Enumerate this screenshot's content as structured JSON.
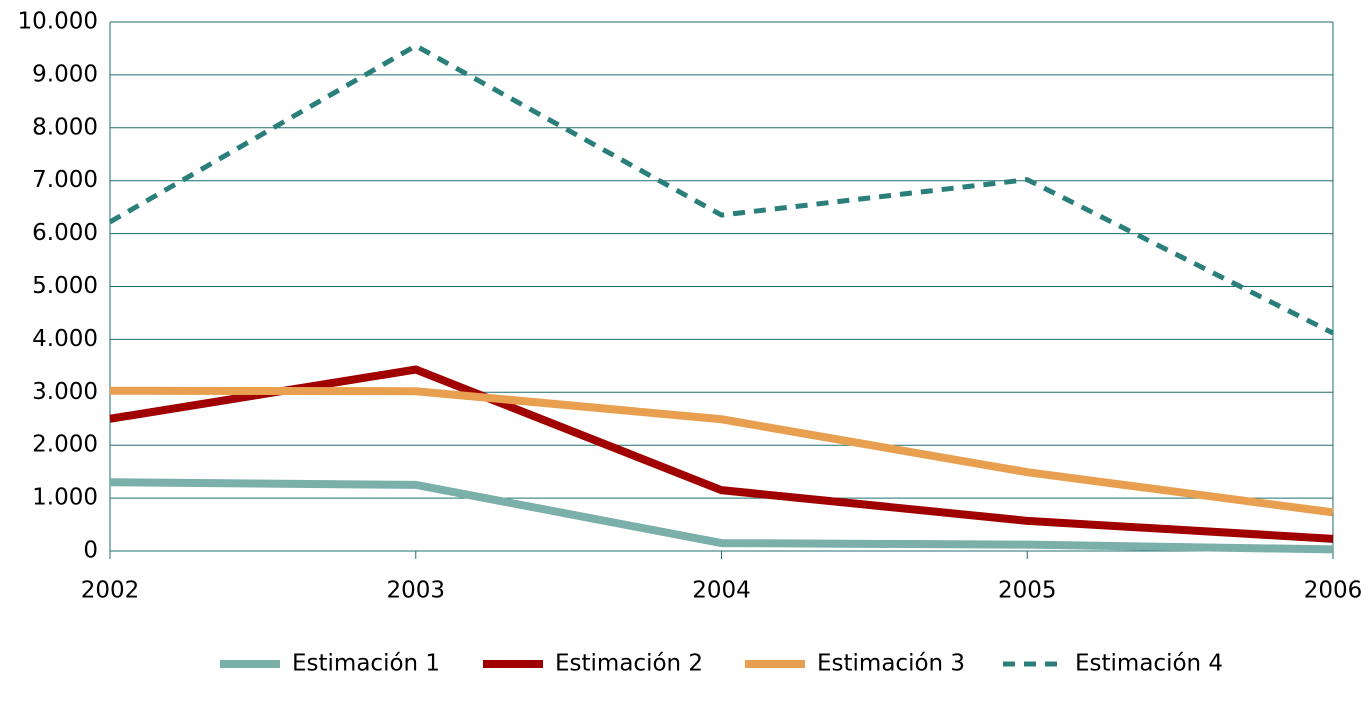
{
  "chart_data": {
    "type": "line",
    "x": [
      2002,
      2003,
      2004,
      2005,
      2006
    ],
    "xlim": [
      2002,
      2006
    ],
    "xticks": [
      2002,
      2003,
      2004,
      2005,
      2006
    ],
    "ylim": [
      0,
      10000
    ],
    "yticks": [
      0,
      {
        "value": 1000,
        "label": "1.000"
      },
      {
        "value": 2000,
        "label": "2.000"
      },
      {
        "value": 3000,
        "label": "3.000"
      },
      {
        "value": 4000,
        "label": "4.000"
      },
      {
        "value": 5000,
        "label": "5.000"
      },
      {
        "value": 6000,
        "label": "6.000"
      },
      {
        "value": 7000,
        "label": "7.000"
      },
      {
        "value": 8000,
        "label": "8.000"
      },
      {
        "value": 9000,
        "label": "9.000"
      },
      {
        "value": 10000,
        "label": "10.000"
      }
    ],
    "grid": true,
    "legend": "bottom",
    "series": [
      {
        "name": "Estimación 1",
        "color": "#7aafaa",
        "values": [
          1300,
          1250,
          150,
          120,
          30
        ]
      },
      {
        "name": "Estimación 2",
        "color": "#a00000",
        "values": [
          2500,
          3430,
          1150,
          570,
          230
        ]
      },
      {
        "name": "Estimación 3",
        "color": "#e8a050",
        "values": [
          3030,
          3020,
          2490,
          1490,
          730
        ]
      },
      {
        "name": "Estimación 4",
        "color": "#2a7f7a",
        "dashed": true,
        "values": [
          6220,
          9550,
          6350,
          7020,
          4120
        ]
      }
    ]
  }
}
